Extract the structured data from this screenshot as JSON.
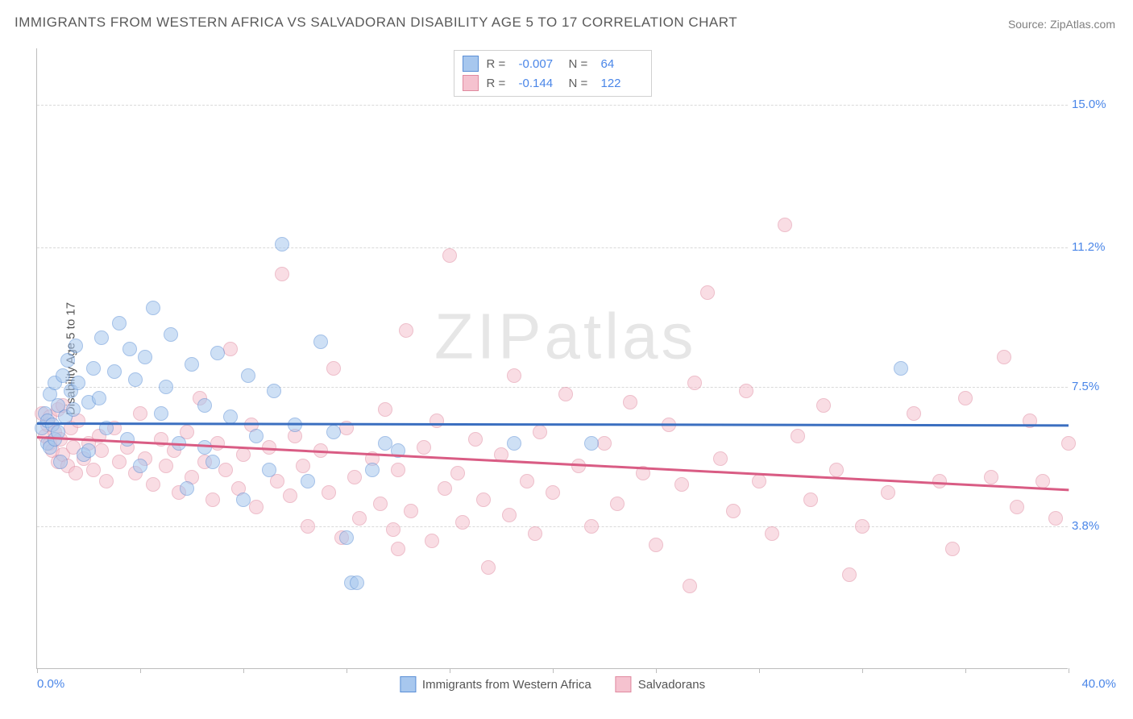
{
  "title": "IMMIGRANTS FROM WESTERN AFRICA VS SALVADORAN DISABILITY AGE 5 TO 17 CORRELATION CHART",
  "source_label": "Source: ",
  "source_name": "ZipAtlas.com",
  "yaxis_title": "Disability Age 5 to 17",
  "watermark_a": "ZIP",
  "watermark_b": "atlas",
  "chart": {
    "type": "scatter",
    "xlim": [
      0.0,
      40.0
    ],
    "ylim": [
      0.0,
      16.5
    ],
    "x_label_min": "0.0%",
    "x_label_max": "40.0%",
    "x_ticks": [
      0,
      4,
      8,
      12,
      16,
      20,
      24,
      28,
      32,
      36,
      40
    ],
    "y_gridlines": [
      3.8,
      7.5,
      11.2,
      15.0
    ],
    "y_tick_labels": [
      "3.8%",
      "7.5%",
      "11.2%",
      "15.0%"
    ],
    "background_color": "#ffffff",
    "grid_color": "#d9d9d9",
    "axis_color": "#bdbdbd",
    "tick_label_color": "#4a86e8",
    "point_radius": 9,
    "point_opacity": 0.55,
    "line_width": 2.5,
    "series": [
      {
        "name": "Immigrants from Western Africa",
        "fill": "#a7c7ee",
        "stroke": "#5b8fd6",
        "line_color": "#3b6fc0",
        "R": "-0.007",
        "N": "64",
        "regression": {
          "x1": 0.0,
          "y1": 6.55,
          "x2": 40.0,
          "y2": 6.5
        },
        "points": [
          [
            0.2,
            6.4
          ],
          [
            0.3,
            6.8
          ],
          [
            0.4,
            6.0
          ],
          [
            0.4,
            6.6
          ],
          [
            0.5,
            7.3
          ],
          [
            0.5,
            5.9
          ],
          [
            0.6,
            6.5
          ],
          [
            0.7,
            7.6
          ],
          [
            0.7,
            6.1
          ],
          [
            0.8,
            7.0
          ],
          [
            0.8,
            6.3
          ],
          [
            0.9,
            5.5
          ],
          [
            1.0,
            7.8
          ],
          [
            1.1,
            6.7
          ],
          [
            1.2,
            8.2
          ],
          [
            1.3,
            7.4
          ],
          [
            1.4,
            6.9
          ],
          [
            1.5,
            8.6
          ],
          [
            1.6,
            7.6
          ],
          [
            1.8,
            5.7
          ],
          [
            2.0,
            7.1
          ],
          [
            2.0,
            5.8
          ],
          [
            2.2,
            8.0
          ],
          [
            2.4,
            7.2
          ],
          [
            2.5,
            8.8
          ],
          [
            2.7,
            6.4
          ],
          [
            3.0,
            7.9
          ],
          [
            3.2,
            9.2
          ],
          [
            3.5,
            6.1
          ],
          [
            3.6,
            8.5
          ],
          [
            3.8,
            7.7
          ],
          [
            4.0,
            5.4
          ],
          [
            4.2,
            8.3
          ],
          [
            4.5,
            9.6
          ],
          [
            4.8,
            6.8
          ],
          [
            5.0,
            7.5
          ],
          [
            5.2,
            8.9
          ],
          [
            5.5,
            6.0
          ],
          [
            5.8,
            4.8
          ],
          [
            6.0,
            8.1
          ],
          [
            6.5,
            7.0
          ],
          [
            6.8,
            5.5
          ],
          [
            7.0,
            8.4
          ],
          [
            7.5,
            6.7
          ],
          [
            8.0,
            4.5
          ],
          [
            8.2,
            7.8
          ],
          [
            8.5,
            6.2
          ],
          [
            9.0,
            5.3
          ],
          [
            9.2,
            7.4
          ],
          [
            9.5,
            11.3
          ],
          [
            10.0,
            6.5
          ],
          [
            10.5,
            5.0
          ],
          [
            11.0,
            8.7
          ],
          [
            11.5,
            6.3
          ],
          [
            12.0,
            3.5
          ],
          [
            12.2,
            2.3
          ],
          [
            12.4,
            2.3
          ],
          [
            13.0,
            5.3
          ],
          [
            13.5,
            6.0
          ],
          [
            14.0,
            5.8
          ],
          [
            18.5,
            6.0
          ],
          [
            21.5,
            6.0
          ],
          [
            33.5,
            8.0
          ],
          [
            6.5,
            5.9
          ]
        ]
      },
      {
        "name": "Salvadorans",
        "fill": "#f5c2cf",
        "stroke": "#e08aa0",
        "line_color": "#d95c84",
        "R": "-0.144",
        "N": "122",
        "regression": {
          "x1": 0.0,
          "y1": 6.2,
          "x2": 40.0,
          "y2": 4.8
        },
        "points": [
          [
            0.2,
            6.8
          ],
          [
            0.3,
            6.2
          ],
          [
            0.4,
            6.5
          ],
          [
            0.5,
            6.0
          ],
          [
            0.5,
            6.7
          ],
          [
            0.6,
            5.8
          ],
          [
            0.7,
            6.3
          ],
          [
            0.8,
            5.5
          ],
          [
            0.8,
            6.9
          ],
          [
            0.9,
            6.1
          ],
          [
            1.0,
            5.7
          ],
          [
            1.0,
            7.0
          ],
          [
            1.2,
            5.4
          ],
          [
            1.3,
            6.4
          ],
          [
            1.4,
            5.9
          ],
          [
            1.5,
            5.2
          ],
          [
            1.6,
            6.6
          ],
          [
            1.8,
            5.6
          ],
          [
            2.0,
            6.0
          ],
          [
            2.2,
            5.3
          ],
          [
            2.4,
            6.2
          ],
          [
            2.5,
            5.8
          ],
          [
            2.7,
            5.0
          ],
          [
            3.0,
            6.4
          ],
          [
            3.2,
            5.5
          ],
          [
            3.5,
            5.9
          ],
          [
            3.8,
            5.2
          ],
          [
            4.0,
            6.8
          ],
          [
            4.2,
            5.6
          ],
          [
            4.5,
            4.9
          ],
          [
            4.8,
            6.1
          ],
          [
            5.0,
            5.4
          ],
          [
            5.3,
            5.8
          ],
          [
            5.5,
            4.7
          ],
          [
            5.8,
            6.3
          ],
          [
            6.0,
            5.1
          ],
          [
            6.3,
            7.2
          ],
          [
            6.5,
            5.5
          ],
          [
            6.8,
            4.5
          ],
          [
            7.0,
            6.0
          ],
          [
            7.3,
            5.3
          ],
          [
            7.5,
            8.5
          ],
          [
            7.8,
            4.8
          ],
          [
            8.0,
            5.7
          ],
          [
            8.3,
            6.5
          ],
          [
            8.5,
            4.3
          ],
          [
            9.0,
            5.9
          ],
          [
            9.3,
            5.0
          ],
          [
            9.5,
            10.5
          ],
          [
            9.8,
            4.6
          ],
          [
            10.0,
            6.2
          ],
          [
            10.3,
            5.4
          ],
          [
            10.5,
            3.8
          ],
          [
            11.0,
            5.8
          ],
          [
            11.3,
            4.7
          ],
          [
            11.5,
            8.0
          ],
          [
            11.8,
            3.5
          ],
          [
            12.0,
            6.4
          ],
          [
            12.3,
            5.1
          ],
          [
            12.5,
            4.0
          ],
          [
            13.0,
            5.6
          ],
          [
            13.3,
            4.4
          ],
          [
            13.5,
            6.9
          ],
          [
            13.8,
            3.7
          ],
          [
            14.0,
            5.3
          ],
          [
            14.3,
            9.0
          ],
          [
            14.5,
            4.2
          ],
          [
            15.0,
            5.9
          ],
          [
            15.3,
            3.4
          ],
          [
            15.5,
            6.6
          ],
          [
            15.8,
            4.8
          ],
          [
            16.0,
            11.0
          ],
          [
            16.3,
            5.2
          ],
          [
            16.5,
            3.9
          ],
          [
            17.0,
            6.1
          ],
          [
            17.3,
            4.5
          ],
          [
            17.5,
            2.7
          ],
          [
            18.0,
            5.7
          ],
          [
            18.3,
            4.1
          ],
          [
            18.5,
            7.8
          ],
          [
            19.0,
            5.0
          ],
          [
            19.3,
            3.6
          ],
          [
            19.5,
            6.3
          ],
          [
            20.0,
            4.7
          ],
          [
            20.5,
            7.3
          ],
          [
            21.0,
            5.4
          ],
          [
            21.5,
            3.8
          ],
          [
            22.0,
            6.0
          ],
          [
            22.5,
            4.4
          ],
          [
            23.0,
            7.1
          ],
          [
            23.5,
            5.2
          ],
          [
            24.0,
            3.3
          ],
          [
            24.5,
            6.5
          ],
          [
            25.0,
            4.9
          ],
          [
            25.3,
            2.2
          ],
          [
            25.5,
            7.6
          ],
          [
            26.0,
            10.0
          ],
          [
            26.5,
            5.6
          ],
          [
            27.0,
            4.2
          ],
          [
            27.5,
            7.4
          ],
          [
            28.0,
            5.0
          ],
          [
            28.5,
            3.6
          ],
          [
            29.0,
            11.8
          ],
          [
            29.5,
            6.2
          ],
          [
            30.0,
            4.5
          ],
          [
            30.5,
            7.0
          ],
          [
            31.0,
            5.3
          ],
          [
            31.5,
            2.5
          ],
          [
            32.0,
            3.8
          ],
          [
            33.0,
            4.7
          ],
          [
            34.0,
            6.8
          ],
          [
            35.0,
            5.0
          ],
          [
            35.5,
            3.2
          ],
          [
            36.0,
            7.2
          ],
          [
            37.0,
            5.1
          ],
          [
            37.5,
            8.3
          ],
          [
            38.0,
            4.3
          ],
          [
            38.5,
            6.6
          ],
          [
            39.0,
            5.0
          ],
          [
            39.5,
            4.0
          ],
          [
            40.0,
            6.0
          ],
          [
            14.0,
            3.2
          ]
        ]
      }
    ]
  },
  "legend": {
    "R_label": "R =",
    "N_label": "N ="
  }
}
